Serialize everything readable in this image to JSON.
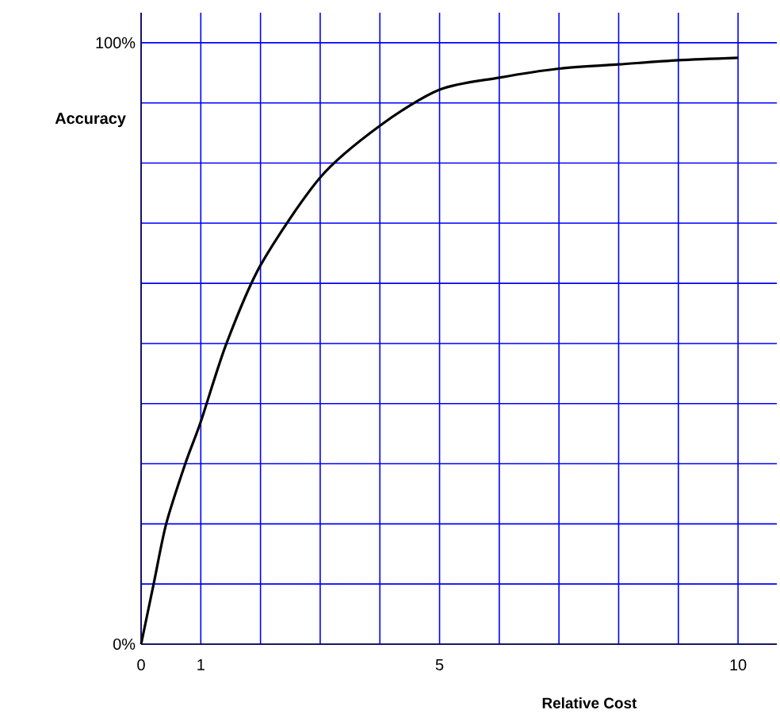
{
  "chart_data": {
    "type": "line",
    "xlabel": "Relative Cost",
    "ylabel": "Accuracy",
    "xlim": [
      0,
      10.65
    ],
    "ylim": [
      0,
      105
    ],
    "xticks": [
      0,
      1,
      {
        "value": 2,
        "label": null
      },
      {
        "value": 3,
        "label": null
      },
      {
        "value": 4,
        "label": null
      },
      5,
      {
        "value": 6,
        "label": null
      },
      {
        "value": 7,
        "label": null
      },
      {
        "value": 8,
        "label": null
      },
      {
        "value": 9,
        "label": null
      },
      10
    ],
    "yticks": [
      {
        "value": 0,
        "label": "0%"
      },
      {
        "value": 10,
        "label": null
      },
      {
        "value": 20,
        "label": null
      },
      {
        "value": 30,
        "label": null
      },
      {
        "value": 40,
        "label": null
      },
      {
        "value": 50,
        "label": null
      },
      {
        "value": 60,
        "label": null
      },
      {
        "value": 70,
        "label": null
      },
      {
        "value": 80,
        "label": null
      },
      {
        "value": 90,
        "label": null
      },
      {
        "value": 100,
        "label": "100%"
      }
    ],
    "grid": true,
    "series": [
      {
        "color": "#000000",
        "x": [
          0,
          0.21,
          0.42,
          0.74,
          1,
          1.43,
          2,
          3,
          4,
          5,
          6,
          7,
          8,
          9,
          10
        ],
        "values": [
          0,
          10,
          20,
          30,
          37,
          50,
          63,
          77.6,
          86.2,
          92.2,
          94.2,
          95.7,
          96.4,
          97.1,
          97.5
        ]
      }
    ]
  }
}
